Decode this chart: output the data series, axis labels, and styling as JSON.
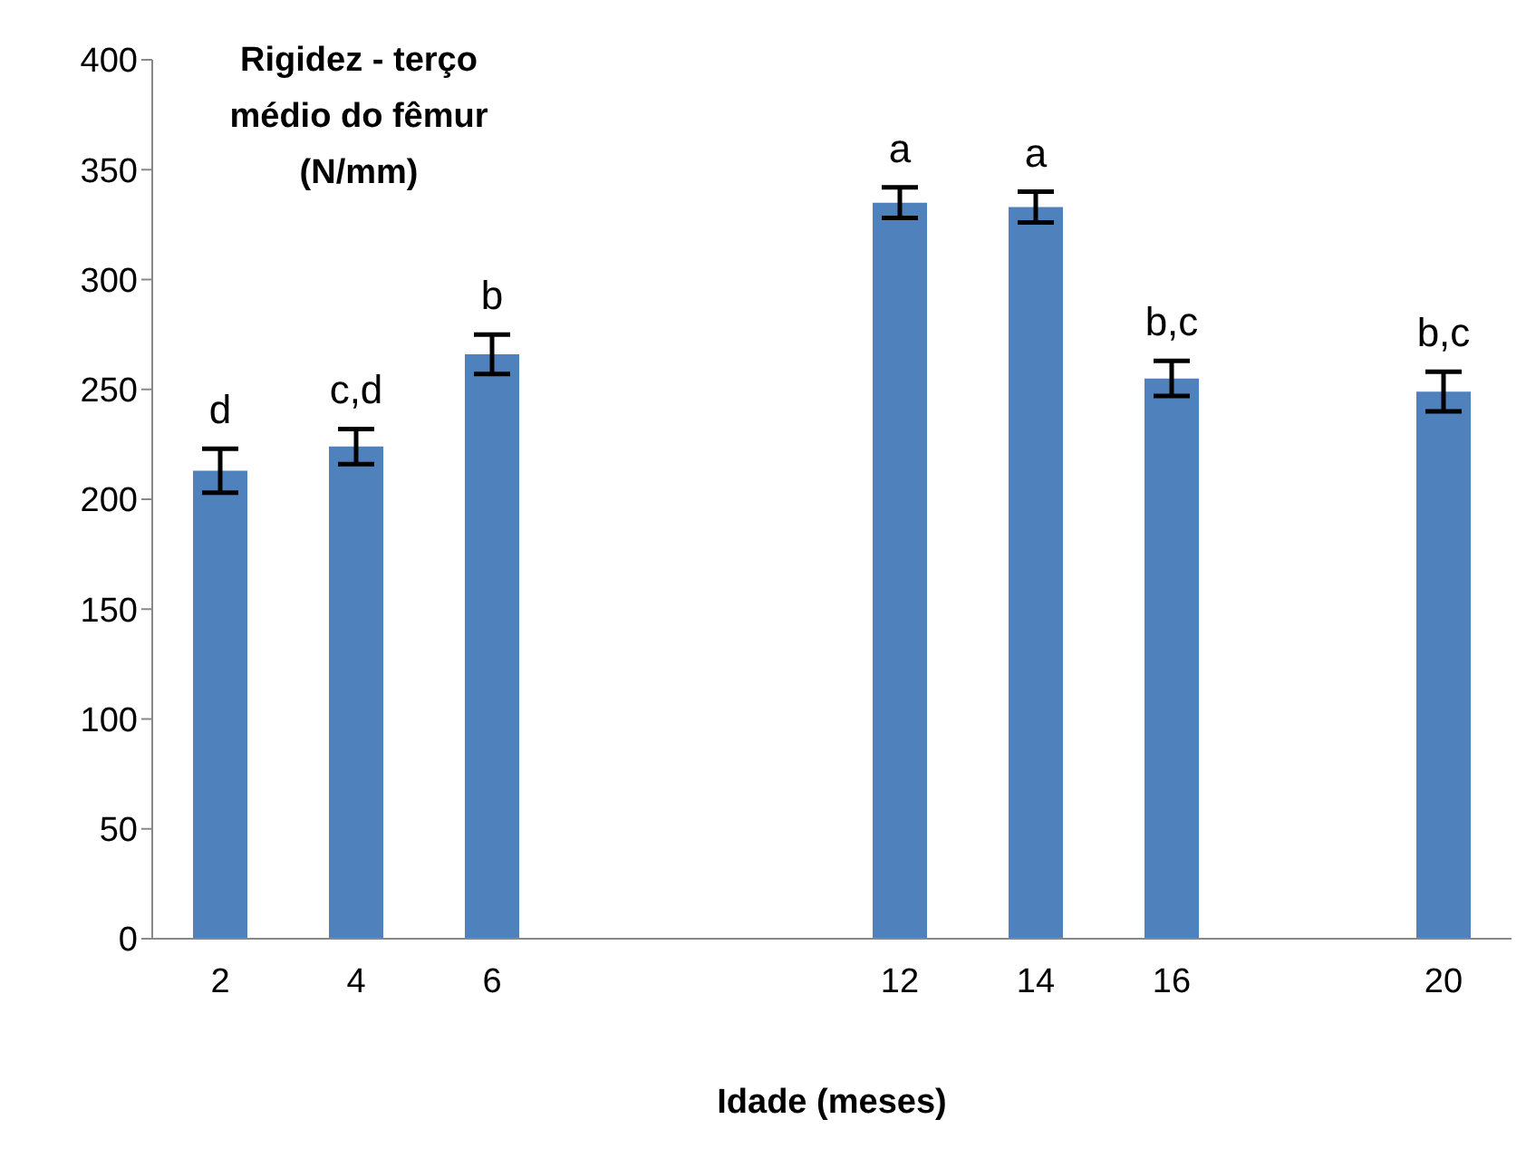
{
  "chart_data": {
    "type": "bar",
    "title": "Rigidez - terço médio do fêmur (N/mm)",
    "xlabel": "Idade (meses)",
    "categories": [
      "2",
      "4",
      "6",
      null,
      null,
      "12",
      "14",
      "16",
      null,
      "20"
    ],
    "values": [
      213,
      224,
      266,
      null,
      null,
      335,
      333,
      255,
      null,
      249
    ],
    "errors": [
      10,
      8,
      9,
      null,
      null,
      7,
      7,
      8,
      null,
      9
    ],
    "color": "#4f81bd",
    "ylim": [
      0,
      400
    ],
    "yticks": [
      0,
      50,
      100,
      150,
      200,
      250,
      300,
      350,
      400
    ],
    "grid": false,
    "annotations": [
      {
        "text": "d",
        "x": "2",
        "y": 213
      },
      {
        "text": "c,d",
        "x": "4",
        "y": 224
      },
      {
        "text": "b",
        "x": "6",
        "y": 266
      },
      {
        "text": "a",
        "x": "12",
        "y": 335
      },
      {
        "text": "a",
        "x": "14",
        "y": 333
      },
      {
        "text": "b,c",
        "x": "16",
        "y": 255
      },
      {
        "text": "b,c",
        "x": "20",
        "y": 249
      }
    ]
  }
}
